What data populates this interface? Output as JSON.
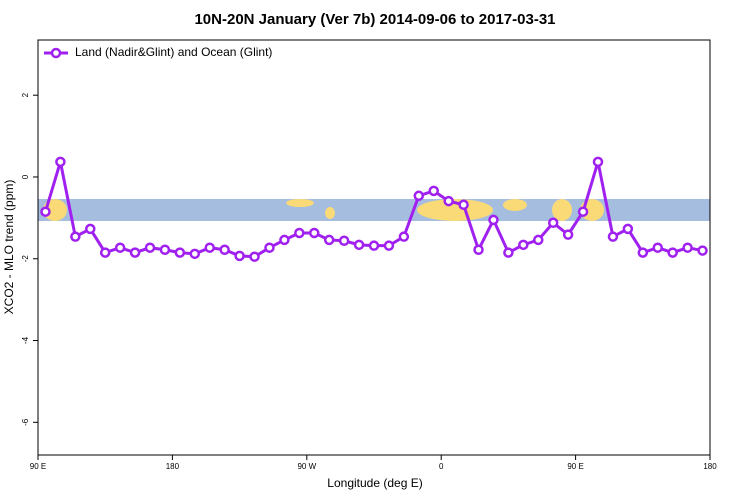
{
  "chart_data": {
    "type": "line",
    "title": "10N-20N January (Ver 7b)   2014-09-06 to 2017-03-31",
    "xlabel": "Longitude (deg E)",
    "ylabel": "XCO2 - MLO trend (ppm)",
    "x": [
      95,
      105,
      115,
      125,
      135,
      145,
      155,
      165,
      175,
      185,
      195,
      205,
      215,
      225,
      235,
      245,
      255,
      265,
      275,
      285,
      295,
      305,
      315,
      325,
      335,
      345,
      355,
      365,
      375,
      385,
      395,
      405,
      415,
      425,
      435,
      445,
      455,
      465,
      475,
      485,
      495,
      505,
      515,
      525,
      535
    ],
    "series": [
      {
        "name": "Land (Nadir&Glint) and Ocean (Glint)",
        "color": "#a020f0",
        "values": [
          -0.85,
          0.37,
          -1.46,
          -1.27,
          -1.85,
          -1.73,
          -1.85,
          -1.73,
          -1.78,
          -1.85,
          -1.88,
          -1.73,
          -1.78,
          -1.93,
          -1.95,
          -1.73,
          -1.54,
          -1.37,
          -1.37,
          -1.54,
          -1.56,
          -1.66,
          -1.68,
          -1.68,
          -1.46,
          -0.46,
          -0.34,
          -0.59,
          -0.68,
          -1.78,
          -1.05,
          -1.85,
          -1.66,
          -1.54,
          -1.12,
          -1.41,
          -0.85,
          0.37,
          -1.46,
          -1.27,
          -1.85,
          -1.73,
          -1.85,
          -1.73,
          -1.8
        ]
      }
    ],
    "xlim": [
      90,
      540
    ],
    "xticks": [
      {
        "value": 90,
        "label": "90 E"
      },
      180,
      {
        "value": 270,
        "label": "90 W"
      },
      {
        "value": 360,
        "label": "0"
      },
      {
        "value": 450,
        "label": "90 E"
      },
      {
        "value": 540,
        "label": "180"
      }
    ],
    "ylim": [
      -6.8,
      3.35
    ],
    "yticks": [
      -6,
      -4,
      -2,
      0,
      2
    ],
    "legend": "top-left"
  }
}
